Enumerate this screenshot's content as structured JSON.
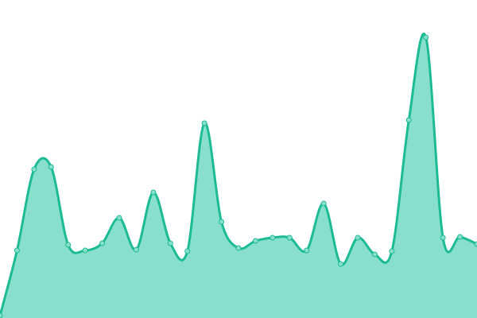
{
  "chart_data": {
    "type": "area",
    "title": "",
    "xlabel": "",
    "ylabel": "",
    "x": [
      0,
      1,
      2,
      3,
      4,
      5,
      6,
      7,
      8,
      9,
      10,
      11,
      12,
      13,
      14,
      15,
      16,
      17,
      18,
      19,
      20,
      21,
      22,
      23,
      24,
      25,
      26,
      27,
      28
    ],
    "values": [
      3,
      85,
      187,
      190,
      92,
      85,
      94,
      126,
      86,
      158,
      94,
      84,
      245,
      121,
      88,
      97,
      101,
      101,
      85,
      144,
      68,
      101,
      80,
      84,
      249,
      353,
      101,
      102,
      93
    ],
    "ylim": [
      0,
      400
    ],
    "xlim": [
      0,
      28
    ],
    "grid": false,
    "axes_visible": false,
    "smooth": true,
    "colors": {
      "fill": "#88e0cc",
      "line": "#1dbb94",
      "point_fill": "#88e0cc",
      "point_stroke": "#1dbb94"
    }
  }
}
